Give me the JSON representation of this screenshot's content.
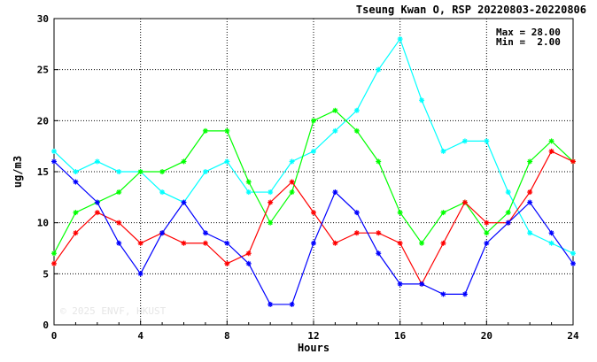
{
  "chart_data": {
    "type": "line",
    "title": "Tseung Kwan O, RSP 20220803-20220806",
    "xlabel": "Hours",
    "ylabel": "ug/m3",
    "xlim": [
      0,
      24
    ],
    "ylim": [
      0,
      30
    ],
    "x_ticks": [
      0,
      4,
      8,
      12,
      16,
      20,
      24
    ],
    "y_ticks": [
      0,
      5,
      10,
      15,
      20,
      25,
      30
    ],
    "grid": true,
    "stats": {
      "max_label": "Max = 28.00",
      "min_label": "Min =  2.00"
    },
    "watermark": "© 2025  ENVF, HKUST",
    "x": [
      0,
      1,
      2,
      3,
      4,
      5,
      6,
      7,
      8,
      9,
      10,
      11,
      12,
      13,
      14,
      15,
      16,
      17,
      18,
      19,
      20,
      21,
      22,
      23,
      24
    ],
    "series": [
      {
        "color": "#00ffff",
        "values": [
          17,
          15,
          16,
          15,
          15,
          13,
          12,
          15,
          16,
          13,
          13,
          16,
          17,
          19,
          21,
          25,
          28,
          22,
          17,
          18,
          18,
          13,
          9,
          8,
          7
        ]
      },
      {
        "color": "#00ff00",
        "values": [
          7,
          11,
          12,
          13,
          15,
          15,
          16,
          19,
          19,
          14,
          10,
          13,
          20,
          21,
          19,
          16,
          11,
          8,
          11,
          12,
          9,
          11,
          16,
          18,
          16
        ]
      },
      {
        "color": "#ff0000",
        "values": [
          6,
          9,
          11,
          10,
          8,
          9,
          8,
          8,
          6,
          7,
          12,
          14,
          11,
          8,
          9,
          9,
          8,
          4,
          8,
          12,
          10,
          10,
          13,
          17,
          16
        ]
      },
      {
        "color": "#0000ff",
        "values": [
          16,
          14,
          12,
          8,
          5,
          9,
          12,
          9,
          8,
          6,
          2,
          2,
          8,
          13,
          11,
          7,
          4,
          4,
          3,
          3,
          8,
          10,
          12,
          9,
          6
        ]
      }
    ]
  }
}
